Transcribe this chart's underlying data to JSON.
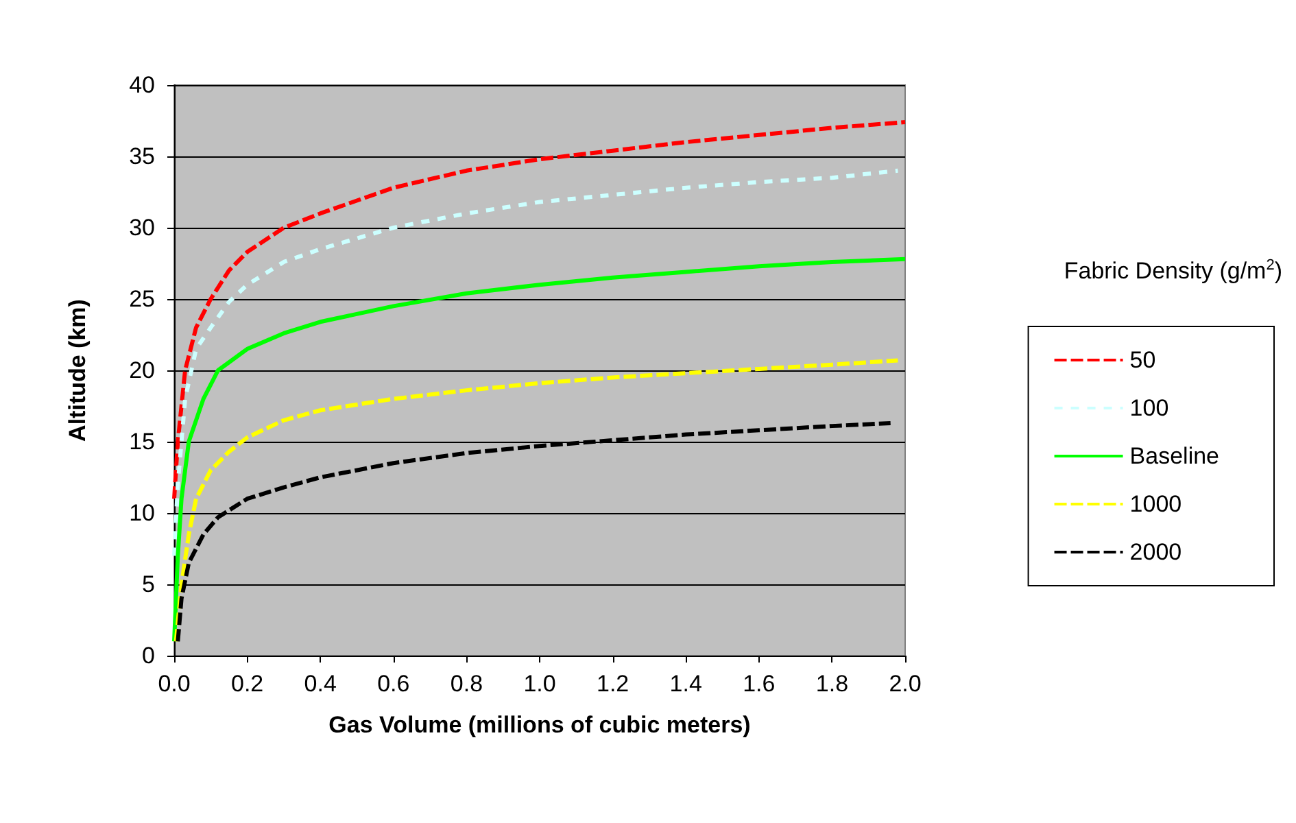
{
  "chart_data": {
    "type": "line",
    "xlabel": "Gas Volume (millions of cubic meters)",
    "ylabel": "Altitude (km)",
    "legend_title": "Fabric Density (g/m$^{2}$)",
    "legend": "right",
    "grid": "y",
    "marker": "none",
    "xlim": [
      0,
      2
    ],
    "xticks": [
      {
        "value": 0,
        "label": "0.0"
      },
      {
        "value": 0.2,
        "label": "0.2"
      },
      {
        "value": 0.4,
        "label": "0.4"
      },
      {
        "value": 0.6,
        "label": "0.6"
      },
      {
        "value": 0.8,
        "label": "0.8"
      },
      {
        "value": 1,
        "label": "1.0"
      },
      {
        "value": 1.2,
        "label": "1.2"
      },
      {
        "value": 1.4,
        "label": "1.4"
      },
      {
        "value": 1.6,
        "label": "1.6"
      },
      {
        "value": 1.8,
        "label": "1.8"
      },
      {
        "value": 2,
        "label": "2.0"
      }
    ],
    "ylim": [
      0,
      40
    ],
    "yticks": [
      0,
      5,
      10,
      15,
      20,
      25,
      30,
      35,
      40
    ],
    "series": [
      {
        "name": "50",
        "color": "#ff0000",
        "line_style": "dashed",
        "x": [
          0,
          0.01,
          0.03,
          0.06,
          0.1,
          0.15,
          0.2,
          0.3,
          0.4,
          0.6,
          0.8,
          1.0,
          1.2,
          1.4,
          1.6,
          1.8,
          2.0
        ],
        "values": [
          11,
          15,
          20,
          23,
          25,
          27,
          28.3,
          30,
          31,
          32.8,
          34,
          34.8,
          35.4,
          36,
          36.5,
          37,
          37.4
        ]
      },
      {
        "name": "100",
        "color": "#ccffff",
        "line_style": "dotted",
        "x": [
          0,
          0.01,
          0.03,
          0.06,
          0.1,
          0.15,
          0.2,
          0.3,
          0.4,
          0.6,
          0.8,
          1.0,
          1.2,
          1.4,
          1.6,
          1.8,
          1.98
        ],
        "values": [
          7,
          12,
          18,
          21.5,
          23,
          24.8,
          26,
          27.6,
          28.5,
          30,
          31,
          31.8,
          32.3,
          32.8,
          33.2,
          33.5,
          34
        ]
      },
      {
        "name": "Baseline",
        "color": "#00ff00",
        "line_style": "solid",
        "x": [
          0,
          0.01,
          0.02,
          0.04,
          0.08,
          0.12,
          0.2,
          0.3,
          0.4,
          0.6,
          0.8,
          1.0,
          1.2,
          1.4,
          1.6,
          1.8,
          2.0
        ],
        "values": [
          1,
          7,
          11,
          15,
          18,
          20,
          21.5,
          22.6,
          23.4,
          24.5,
          25.4,
          26,
          26.5,
          26.9,
          27.3,
          27.6,
          27.8
        ]
      },
      {
        "name": "1000",
        "color": "#ffff00",
        "line_style": "dashed",
        "x": [
          0.005,
          0.02,
          0.04,
          0.06,
          0.1,
          0.15,
          0.2,
          0.3,
          0.4,
          0.6,
          0.8,
          1.0,
          1.2,
          1.4,
          1.6,
          1.8,
          1.98
        ],
        "values": [
          1,
          5,
          8.5,
          11,
          13,
          14.3,
          15.3,
          16.5,
          17.2,
          18,
          18.6,
          19.1,
          19.5,
          19.8,
          20.1,
          20.4,
          20.7
        ]
      },
      {
        "name": "2000",
        "color": "#000000",
        "line_style": "dashed",
        "x": [
          0.01,
          0.02,
          0.04,
          0.08,
          0.12,
          0.2,
          0.3,
          0.4,
          0.6,
          0.8,
          1.0,
          1.2,
          1.4,
          1.6,
          1.8,
          1.96
        ],
        "values": [
          1,
          4,
          6.5,
          8.5,
          9.7,
          11,
          11.8,
          12.5,
          13.5,
          14.2,
          14.7,
          15.1,
          15.5,
          15.8,
          16.1,
          16.3
        ]
      }
    ]
  }
}
